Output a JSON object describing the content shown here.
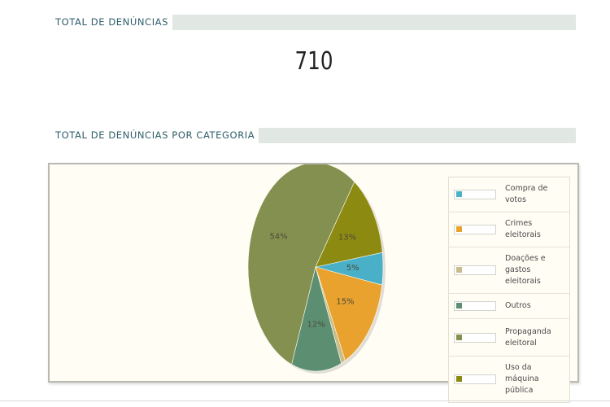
{
  "sections": {
    "total": {
      "title": "TOTAL DE DENÚNCIAS",
      "value": "710"
    },
    "by_category": {
      "title": "TOTAL DE DENÚNCIAS POR CATEGORIA"
    }
  },
  "colors": {
    "title_text": "#2e5d6a",
    "title_band": "#e1e8e4",
    "panel_bg": "#fffdf4"
  },
  "chart_data": {
    "type": "pie",
    "title": "",
    "legend_position": "right",
    "slices": [
      {
        "name": "Compra de votos",
        "value": 5,
        "label": "5%",
        "color": "#4ab0c8"
      },
      {
        "name": "Crimes eleitorais",
        "value": 15,
        "label": "15%",
        "color": "#e9a22e"
      },
      {
        "name": "Doações e gastos eleitorais",
        "value": 1,
        "label": "",
        "color": "#c9bc8a"
      },
      {
        "name": "Outros",
        "value": 12,
        "label": "12%",
        "color": "#5c8f72"
      },
      {
        "name": "Propaganda eleitoral",
        "value": 54,
        "label": "54%",
        "color": "#84904f"
      },
      {
        "name": "Uso da máquina pública",
        "value": 13,
        "label": "13%",
        "color": "#8c8a10"
      }
    ]
  }
}
